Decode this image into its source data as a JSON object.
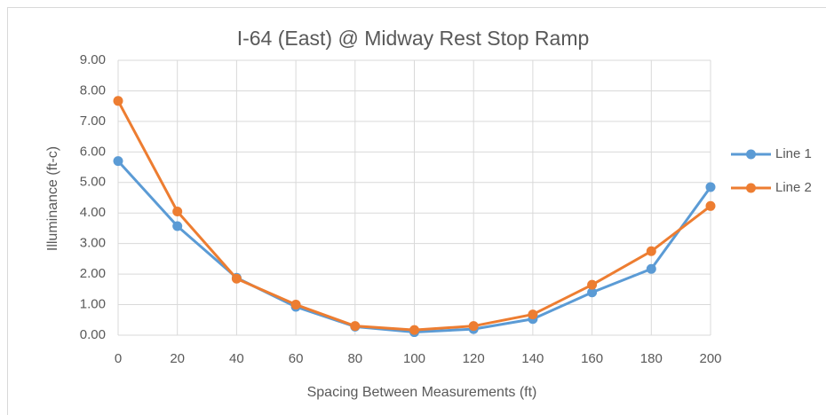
{
  "chart_data": {
    "type": "line",
    "title": "I-64 (East) @ Midway Rest Stop Ramp",
    "xlabel": "Spacing Between Measurements (ft)",
    "ylabel": "Illuminance (ft-c)",
    "x": [
      0,
      20,
      40,
      60,
      80,
      100,
      120,
      140,
      160,
      180,
      200
    ],
    "series": [
      {
        "name": "Line 1",
        "color": "#5b9bd5",
        "values": [
          5.7,
          3.57,
          1.88,
          0.93,
          0.28,
          0.1,
          0.2,
          0.53,
          1.4,
          2.17,
          4.85
        ]
      },
      {
        "name": "Line 2",
        "color": "#ed7d31",
        "values": [
          7.67,
          4.05,
          1.85,
          1.0,
          0.3,
          0.17,
          0.3,
          0.68,
          1.65,
          2.75,
          4.23
        ]
      }
    ],
    "xlim": [
      0,
      200
    ],
    "xticks": [
      0,
      20,
      40,
      60,
      80,
      100,
      120,
      140,
      160,
      180,
      200
    ],
    "ylim": [
      0,
      9
    ],
    "yticks": [
      {
        "value": 0,
        "label": "0.00"
      },
      {
        "value": 1,
        "label": "1.00"
      },
      {
        "value": 2,
        "label": "2.00"
      },
      {
        "value": 3,
        "label": "3.00"
      },
      {
        "value": 4,
        "label": "4.00"
      },
      {
        "value": 5,
        "label": "5.00"
      },
      {
        "value": 6,
        "label": "6.00"
      },
      {
        "value": 7,
        "label": "7.00"
      },
      {
        "value": 8,
        "label": "8.00"
      },
      {
        "value": 9,
        "label": "9.00"
      }
    ],
    "grid": true,
    "legend": "right"
  }
}
